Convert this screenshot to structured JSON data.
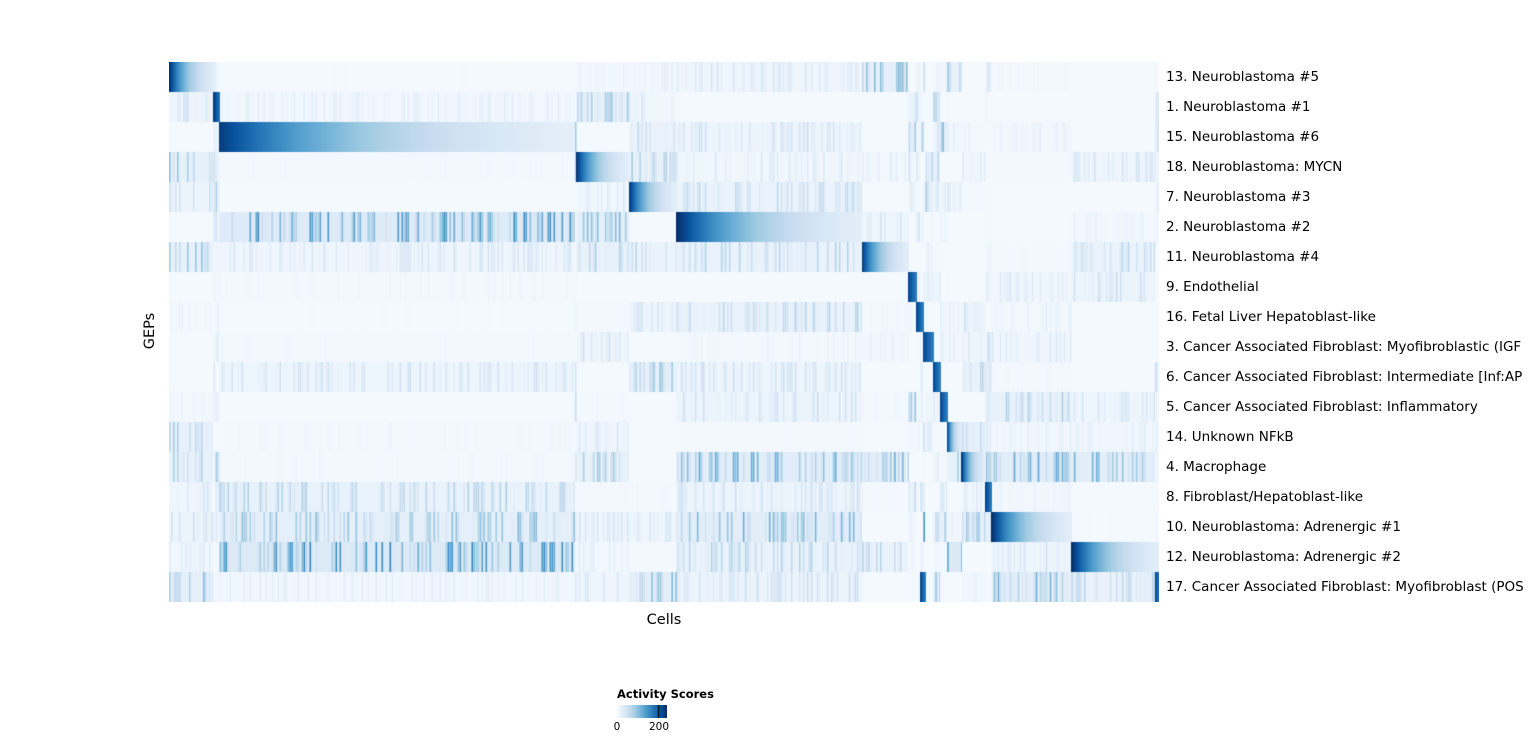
{
  "figure": {
    "background": "#ffffff"
  },
  "chart_data": {
    "type": "heatmap",
    "title": "",
    "xlabel": "Cells",
    "ylabel": "GEPs",
    "x_tick_labels": [],
    "colorbar": {
      "title": "Activity Scores",
      "min": 0,
      "max": 200,
      "ticks": [
        {
          "label": "0",
          "pos": 0.0
        },
        {
          "label": "200",
          "pos": 0.84
        }
      ],
      "colormap": "Blues",
      "colormap_stops": [
        "#f7fbff",
        "#deebf7",
        "#c6dbef",
        "#9ecae1",
        "#6baed6",
        "#4292c6",
        "#2171b5",
        "#08519c",
        "#08306b"
      ]
    },
    "rows": [
      {
        "label": "13. Neuroblastoma #5",
        "noise_level": 1.3,
        "blocks": [
          {
            "start": 0.0,
            "end": 0.047,
            "peak": 1.0
          }
        ]
      },
      {
        "label": "1. Neuroblastoma #1",
        "noise_level": 0.9,
        "blocks": [
          {
            "start": 0.045,
            "end": 0.051,
            "peak": 0.95
          }
        ]
      },
      {
        "label": "15. Neuroblastoma #6",
        "noise_level": 1.2,
        "blocks": [
          {
            "start": 0.051,
            "end": 0.41,
            "peak": 0.95
          }
        ]
      },
      {
        "label": "18. Neuroblastoma: MYCN",
        "noise_level": 1.0,
        "blocks": [
          {
            "start": 0.412,
            "end": 0.465,
            "peak": 0.95
          }
        ]
      },
      {
        "label": "7. Neuroblastoma #3",
        "noise_level": 0.9,
        "blocks": [
          {
            "start": 0.465,
            "end": 0.513,
            "peak": 0.95
          }
        ]
      },
      {
        "label": "2. Neuroblastoma #2",
        "noise_level": 1.5,
        "blocks": [
          {
            "start": 0.513,
            "end": 0.7,
            "peak": 1.0
          }
        ]
      },
      {
        "label": "11. Neuroblastoma #4",
        "noise_level": 1.0,
        "blocks": [
          {
            "start": 0.7,
            "end": 0.747,
            "peak": 0.95
          }
        ]
      },
      {
        "label": "9. Endothelial",
        "noise_level": 0.6,
        "blocks": [
          {
            "start": 0.747,
            "end": 0.755,
            "peak": 0.9
          }
        ]
      },
      {
        "label": "16. Fetal Liver Hepatoblast-like",
        "noise_level": 0.7,
        "blocks": [
          {
            "start": 0.755,
            "end": 0.762,
            "peak": 0.9
          }
        ]
      },
      {
        "label": "3. Cancer Associated Fibroblast: Myofibroblastic (IGF",
        "noise_level": 0.9,
        "blocks": [
          {
            "start": 0.762,
            "end": 0.772,
            "peak": 0.9
          }
        ]
      },
      {
        "label": "6. Cancer Associated Fibroblast: Intermediate [Inf:AP",
        "noise_level": 0.8,
        "blocks": [
          {
            "start": 0.772,
            "end": 0.779,
            "peak": 0.9
          }
        ]
      },
      {
        "label": "5. Cancer Associated Fibroblast: Inflammatory",
        "noise_level": 0.8,
        "blocks": [
          {
            "start": 0.779,
            "end": 0.786,
            "peak": 0.9
          }
        ]
      },
      {
        "label": "14. Unknown NFkB",
        "noise_level": 1.1,
        "blocks": [
          {
            "start": 0.786,
            "end": 0.801,
            "peak": 0.9
          }
        ]
      },
      {
        "label": "4. Macrophage",
        "noise_level": 1.2,
        "blocks": [
          {
            "start": 0.801,
            "end": 0.825,
            "peak": 0.9
          }
        ]
      },
      {
        "label": "8. Fibroblast/Hepatoblast-like",
        "noise_level": 0.7,
        "blocks": [
          {
            "start": 0.825,
            "end": 0.831,
            "peak": 0.9
          }
        ]
      },
      {
        "label": "10. Neuroblastoma: Adrenergic #1",
        "noise_level": 1.6,
        "blocks": [
          {
            "start": 0.831,
            "end": 0.912,
            "peak": 1.0
          }
        ]
      },
      {
        "label": "12. Neuroblastoma: Adrenergic #2",
        "noise_level": 1.4,
        "blocks": [
          {
            "start": 0.912,
            "end": 1.0,
            "peak": 1.0
          }
        ]
      },
      {
        "label": "17. Cancer Associated Fibroblast: Myofibroblast (POS",
        "noise_level": 1.0,
        "blocks": [
          {
            "start": 0.759,
            "end": 0.764,
            "peak": 0.9
          },
          {
            "start": 0.996,
            "end": 1.0,
            "peak": 0.9
          }
        ]
      }
    ],
    "noise": {
      "seed": 1337,
      "max_intensity": 0.22
    }
  }
}
